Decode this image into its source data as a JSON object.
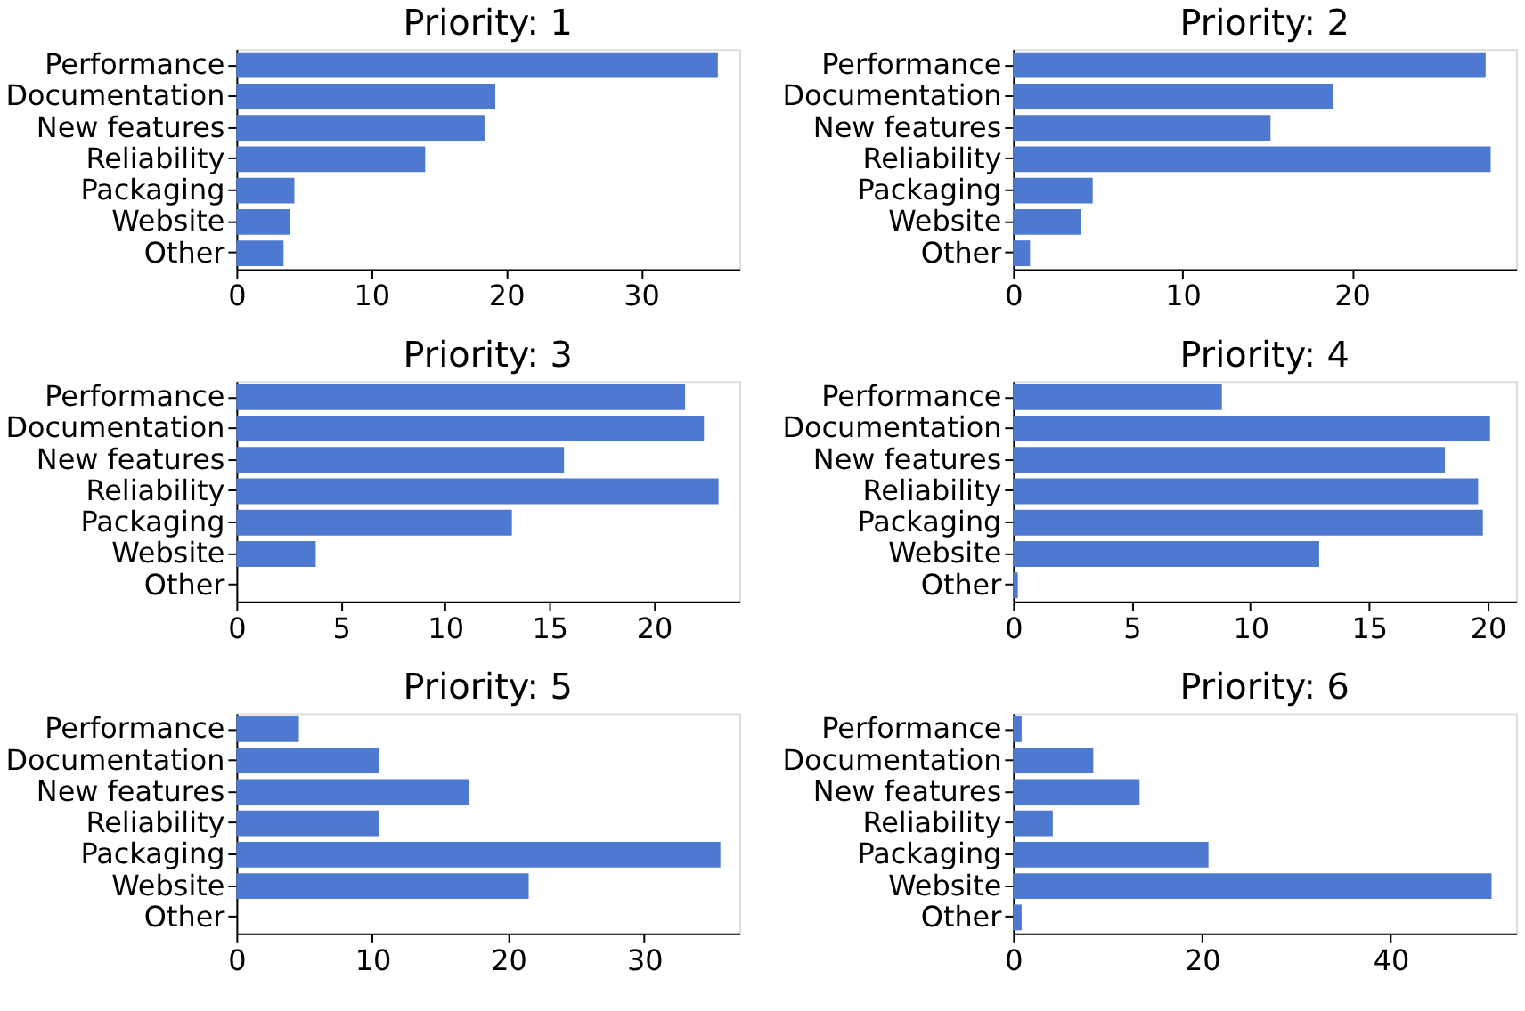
{
  "chart_data": [
    {
      "type": "bar",
      "orientation": "horizontal",
      "title": "Priority: 1",
      "categories": [
        "Performance",
        "Documentation",
        "New features",
        "Reliability",
        "Packaging",
        "Website",
        "Other"
      ],
      "values": [
        35.7,
        19.2,
        18.4,
        14.0,
        4.3,
        4.0,
        3.5
      ],
      "color": "#4e79d0",
      "xlim": [
        0,
        37.3
      ],
      "xticks": [
        0,
        10,
        20,
        30
      ],
      "grid": false
    },
    {
      "type": "bar",
      "orientation": "horizontal",
      "title": "Priority: 2",
      "categories": [
        "Performance",
        "Documentation",
        "New features",
        "Reliability",
        "Packaging",
        "Website",
        "Other"
      ],
      "values": [
        27.9,
        18.9,
        15.2,
        28.2,
        4.7,
        4.0,
        1.0
      ],
      "color": "#4e79d0",
      "xlim": [
        0,
        29.7
      ],
      "xticks": [
        0,
        10,
        20
      ],
      "grid": false
    },
    {
      "type": "bar",
      "orientation": "horizontal",
      "title": "Priority: 3",
      "categories": [
        "Performance",
        "Documentation",
        "New features",
        "Reliability",
        "Packaging",
        "Website",
        "Other"
      ],
      "values": [
        21.5,
        22.4,
        15.7,
        23.1,
        13.2,
        3.8,
        0
      ],
      "color": "#4e79d0",
      "xlim": [
        0,
        24.1
      ],
      "xticks": [
        0,
        5,
        10,
        15,
        20
      ],
      "grid": false
    },
    {
      "type": "bar",
      "orientation": "horizontal",
      "title": "Priority: 4",
      "categories": [
        "Performance",
        "Documentation",
        "New features",
        "Reliability",
        "Packaging",
        "Website",
        "Other"
      ],
      "values": [
        8.8,
        20.1,
        18.2,
        19.6,
        19.8,
        12.9,
        0.2
      ],
      "color": "#4e79d0",
      "xlim": [
        0,
        21.2
      ],
      "xticks": [
        0,
        5,
        10,
        15,
        20
      ],
      "grid": false
    },
    {
      "type": "bar",
      "orientation": "horizontal",
      "title": "Priority: 5",
      "categories": [
        "Performance",
        "Documentation",
        "New features",
        "Reliability",
        "Packaging",
        "Website",
        "Other"
      ],
      "values": [
        4.6,
        10.5,
        17.1,
        10.5,
        35.6,
        21.5,
        0
      ],
      "color": "#4e79d0",
      "xlim": [
        0,
        37.0
      ],
      "xticks": [
        0,
        10,
        20,
        30
      ],
      "grid": false
    },
    {
      "type": "bar",
      "orientation": "horizontal",
      "title": "Priority: 6",
      "categories": [
        "Performance",
        "Documentation",
        "New features",
        "Reliability",
        "Packaging",
        "Website",
        "Other"
      ],
      "values": [
        0.9,
        8.5,
        13.4,
        4.2,
        20.7,
        50.7,
        0.9
      ],
      "color": "#4e79d0",
      "xlim": [
        0,
        53.3
      ],
      "xticks": [
        0,
        20,
        40
      ],
      "grid": false
    }
  ]
}
